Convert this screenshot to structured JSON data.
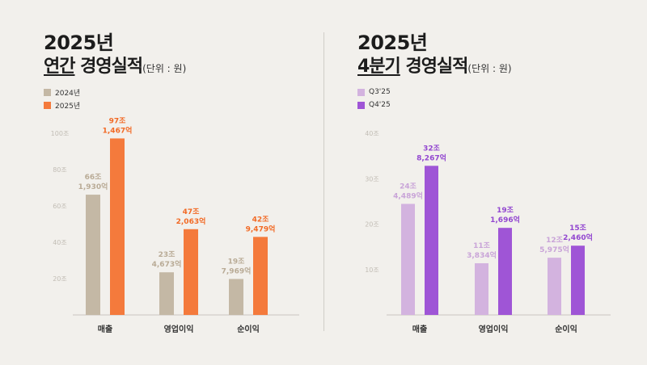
{
  "left": {
    "title_year": "2025년",
    "title_underlined": "연간",
    "title_rest": " 경영실적",
    "unit": "(단위 : 원)",
    "legend": [
      {
        "label": "2024년",
        "color": "#c4b8a5"
      },
      {
        "label": "2025년",
        "color": "#f47a3c"
      }
    ]
  },
  "right": {
    "title_year": "2025년",
    "title_underlined": "4분기",
    "title_rest": " 경영실적",
    "unit": "(단위 : 원)",
    "legend": [
      {
        "label": "Q3'25",
        "color": "#d3b3df"
      },
      {
        "label": "Q4'25",
        "color": "#9f55d6"
      }
    ]
  },
  "chart_data": [
    {
      "type": "bar",
      "categories": [
        "매출",
        "영업이익",
        "순이익"
      ],
      "ylim": [
        0,
        100
      ],
      "yticks": [
        20,
        40,
        60,
        80,
        100
      ],
      "ytick_labels": [
        "20조",
        "40조",
        "60조",
        "80조",
        "100조"
      ],
      "series": [
        {
          "name": "2024년",
          "color": "#c4b8a5",
          "label_color": "#b9ab96",
          "values": [
            66.193,
            23.4673,
            19.7969
          ],
          "labels": [
            [
              "66조",
              "1,930억"
            ],
            [
              "23조",
              "4,673억"
            ],
            [
              "19조",
              "7,969억"
            ]
          ]
        },
        {
          "name": "2025년",
          "color": "#f47a3c",
          "label_color": "#f26a25",
          "values": [
            97.1467,
            47.2063,
            42.9479
          ],
          "labels": [
            [
              "97조",
              "1,467억"
            ],
            [
              "47조",
              "2,063억"
            ],
            [
              "42조",
              "9,479억"
            ]
          ]
        }
      ]
    },
    {
      "type": "bar",
      "categories": [
        "매출",
        "영업이익",
        "순이익"
      ],
      "ylim": [
        0,
        40
      ],
      "yticks": [
        10,
        20,
        30,
        40
      ],
      "ytick_labels": [
        "10조",
        "20조",
        "30조",
        "40조"
      ],
      "series": [
        {
          "name": "Q3'25",
          "color": "#d3b3df",
          "label_color": "#c9a4d8",
          "values": [
            24.4489,
            11.3834,
            12.5975
          ],
          "labels": [
            [
              "24조",
              "4,489억"
            ],
            [
              "11조",
              "3,834억"
            ],
            [
              "12조",
              "5,975억"
            ]
          ]
        },
        {
          "name": "Q4'25",
          "color": "#9f55d6",
          "label_color": "#9246d0",
          "values": [
            32.8267,
            19.1696,
            15.246
          ],
          "labels": [
            [
              "32조",
              "8,267억"
            ],
            [
              "19조",
              "1,696억"
            ],
            [
              "15조",
              "2,460억"
            ]
          ]
        }
      ]
    }
  ]
}
